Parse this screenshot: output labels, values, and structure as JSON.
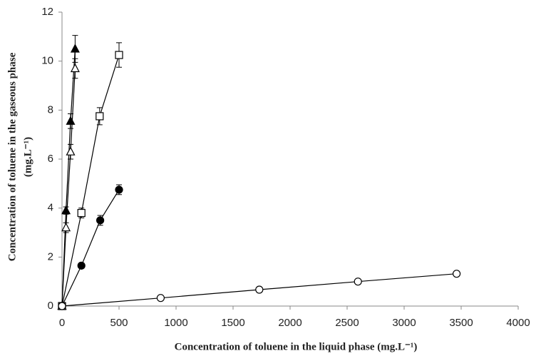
{
  "chart_data": {
    "type": "scatter",
    "xlabel": "Concentration of toluene in the liquid phase (mg.L⁻¹)",
    "ylabel": [
      "Concentration of toluene in the gaseous phase",
      "(mg.L⁻¹)"
    ],
    "xlim": [
      0,
      4000
    ],
    "xticks": [
      0,
      500,
      1000,
      1500,
      2000,
      2500,
      3000,
      3500,
      4000
    ],
    "ylim": [
      0,
      12
    ],
    "yticks": [
      0,
      2,
      4,
      6,
      8,
      10,
      12
    ],
    "grid": false,
    "series": [
      {
        "marker": "triangle",
        "filled": true,
        "color": "#000000",
        "x": [
          0,
          35,
          75,
          115
        ],
        "values": [
          0,
          3.9,
          7.55,
          10.5
        ],
        "errors": [
          null,
          0.15,
          0.3,
          0.55
        ]
      },
      {
        "marker": "triangle",
        "filled": false,
        "color": "#000000",
        "x": [
          0,
          35,
          75,
          115
        ],
        "values": [
          0,
          3.2,
          6.3,
          9.7
        ],
        "errors": [
          null,
          0.2,
          0.3,
          0.4
        ]
      },
      {
        "marker": "square",
        "filled": false,
        "color": "#000000",
        "x": [
          0,
          170,
          330,
          500
        ],
        "values": [
          0,
          3.8,
          7.75,
          10.25
        ],
        "errors": [
          null,
          0.2,
          0.35,
          0.5
        ]
      },
      {
        "marker": "circle",
        "filled": true,
        "color": "#000000",
        "x": [
          0,
          170,
          335,
          500
        ],
        "values": [
          0,
          1.65,
          3.5,
          4.75
        ],
        "errors": [
          null,
          0.1,
          0.2,
          0.2
        ]
      },
      {
        "marker": "circle",
        "filled": false,
        "color": "#000000",
        "x": [
          0,
          865,
          1730,
          2595,
          3460
        ],
        "values": [
          0,
          0.33,
          0.67,
          1.0,
          1.32
        ],
        "errors": [
          null,
          null,
          null,
          null,
          null
        ]
      }
    ]
  }
}
